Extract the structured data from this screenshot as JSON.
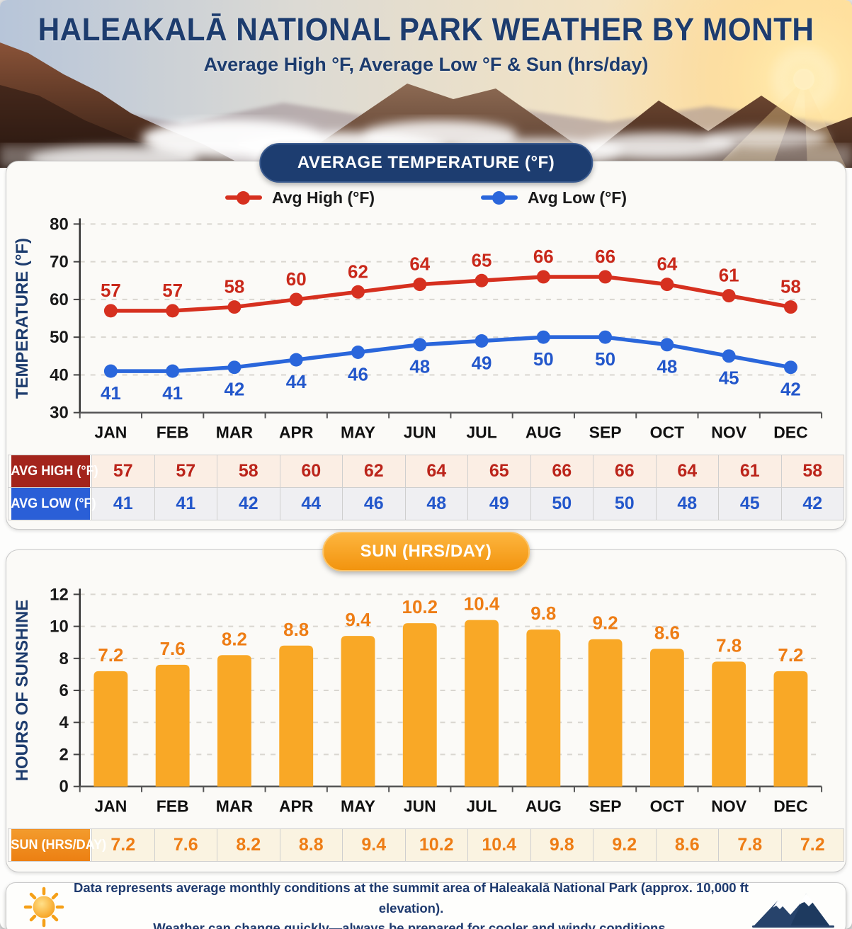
{
  "header": {
    "title": "HALEAKALĀ NATIONAL PARK WEATHER BY MONTH",
    "subtitle": "Average High °F, Average Low °F & Sun (hrs/day)"
  },
  "badges": {
    "temperature": "AVERAGE TEMPERATURE (°F)",
    "sun": "SUN (HRS/DAY)"
  },
  "legend": [
    {
      "label": "Avg High (°F)",
      "color": "#d6301f"
    },
    {
      "label": "Avg Low (°F)",
      "color": "#2a66db"
    }
  ],
  "months": [
    "JAN",
    "FEB",
    "MAR",
    "APR",
    "MAY",
    "JUN",
    "JUL",
    "AUG",
    "SEP",
    "OCT",
    "NOV",
    "DEC"
  ],
  "chart_data": [
    {
      "type": "line",
      "title": "AVERAGE TEMPERATURE (°F)",
      "categories": [
        "JAN",
        "FEB",
        "MAR",
        "APR",
        "MAY",
        "JUN",
        "JUL",
        "AUG",
        "SEP",
        "OCT",
        "NOV",
        "DEC"
      ],
      "series": [
        {
          "name": "Avg High (°F)",
          "color": "#d6301f",
          "label_color": "#c9281a",
          "values": [
            57,
            57,
            58,
            60,
            62,
            64,
            65,
            66,
            66,
            64,
            61,
            58
          ]
        },
        {
          "name": "Avg Low (°F)",
          "color": "#2a66db",
          "label_color": "#2357cb",
          "values": [
            41,
            41,
            42,
            44,
            46,
            48,
            49,
            50,
            50,
            48,
            45,
            42
          ]
        }
      ],
      "xlabel": "",
      "ylabel": "TEMPERATURE (°F)",
      "ylim": [
        30,
        80
      ],
      "yticks": [
        30,
        40,
        50,
        60,
        70,
        80
      ],
      "grid": true,
      "legend_position": "top"
    },
    {
      "type": "bar",
      "title": "SUN (HRS/DAY)",
      "categories": [
        "JAN",
        "FEB",
        "MAR",
        "APR",
        "MAY",
        "JUN",
        "JUL",
        "AUG",
        "SEP",
        "OCT",
        "NOV",
        "DEC"
      ],
      "values": [
        7.2,
        7.6,
        8.2,
        8.8,
        9.4,
        10.2,
        10.4,
        9.8,
        9.2,
        8.6,
        7.8,
        7.2
      ],
      "bar_color": "#f9a826",
      "label_color": "#ee7d15",
      "xlabel": "",
      "ylabel": "HOURS OF SUNSHINE",
      "ylim": [
        0,
        12
      ],
      "yticks": [
        0,
        2,
        4,
        6,
        8,
        10,
        12
      ],
      "grid": true
    }
  ],
  "tables": {
    "high_label": "AVG HIGH (°F)",
    "low_label": "AVG LOW (°F)",
    "sun_label": "SUN (HRS/DAY)"
  },
  "footer": {
    "line1": "Data represents average monthly conditions at the summit area of Haleakalā National Park (approx. 10,000 ft elevation).",
    "line2": "Weather can change quickly—always be prepared for cooler and windy conditions."
  },
  "colors": {
    "navy": "#1d3c6e",
    "high_line": "#d6301f",
    "low_line": "#2a66db",
    "bar": "#f9a826",
    "bar_label": "#ee7d15",
    "header_red": "#a3241c",
    "header_blue": "#2a5fd7",
    "header_orange": "#ec7f12",
    "axis_text": "#1a1a1a",
    "grid": "#d9d6d0"
  }
}
